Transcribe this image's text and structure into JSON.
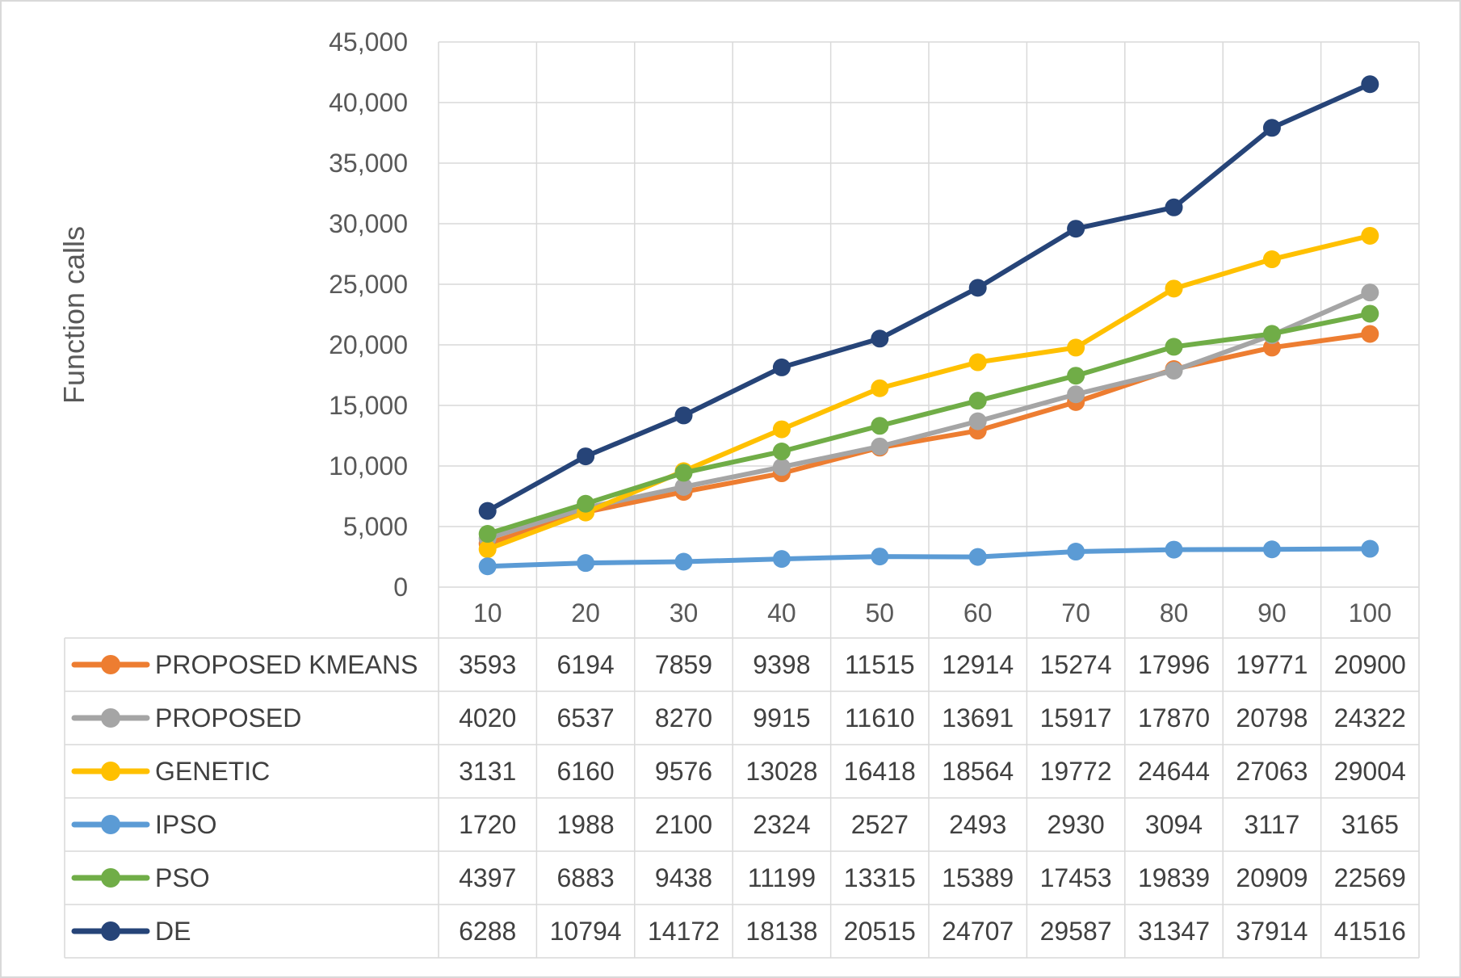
{
  "chart_data": {
    "type": "line",
    "ylabel": "Function calls",
    "xlabel": "",
    "categories": [
      "10",
      "20",
      "30",
      "40",
      "50",
      "60",
      "70",
      "80",
      "90",
      "100"
    ],
    "ylim": [
      0,
      45000
    ],
    "y_ticks": [
      "0",
      "5,000",
      "10,000",
      "15,000",
      "20,000",
      "25,000",
      "30,000",
      "35,000",
      "40,000",
      "45,000"
    ],
    "grid": true,
    "legend": "data table below chart",
    "series": [
      {
        "name": "PROPOSED KMEANS",
        "color": "#ED7D31",
        "values": [
          3593,
          6194,
          7859,
          9398,
          11515,
          12914,
          15274,
          17996,
          19771,
          20900
        ]
      },
      {
        "name": "PROPOSED",
        "color": "#A5A5A5",
        "values": [
          4020,
          6537,
          8270,
          9915,
          11610,
          13691,
          15917,
          17870,
          20798,
          24322
        ]
      },
      {
        "name": "GENETIC",
        "color": "#FFC000",
        "values": [
          3131,
          6160,
          9576,
          13028,
          16418,
          18564,
          19772,
          24644,
          27063,
          29004
        ]
      },
      {
        "name": "IPSO",
        "color": "#5B9BD5",
        "values": [
          1720,
          1988,
          2100,
          2324,
          2527,
          2493,
          2930,
          3094,
          3117,
          3165
        ]
      },
      {
        "name": "PSO",
        "color": "#70AD47",
        "values": [
          4397,
          6883,
          9438,
          11199,
          13315,
          15389,
          17453,
          19839,
          20909,
          22569
        ]
      },
      {
        "name": "DE",
        "color": "#264478",
        "values": [
          6288,
          10794,
          14172,
          18138,
          20515,
          24707,
          29587,
          31347,
          37914,
          41516
        ]
      }
    ]
  }
}
